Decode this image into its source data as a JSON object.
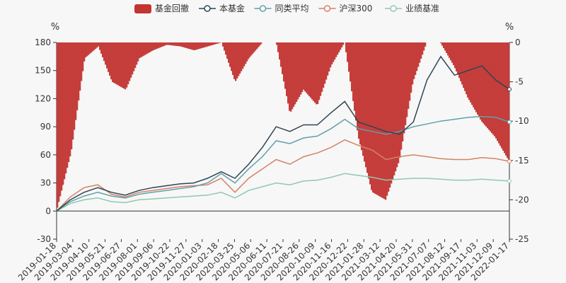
{
  "chart_data": {
    "type": "line",
    "legend": {
      "position": "top",
      "items": [
        {
          "label": "基金回撤",
          "color": "#c23531",
          "marker": "rect"
        },
        {
          "label": "本基金",
          "color": "#2f4554",
          "marker": "line-circle"
        },
        {
          "label": "同类平均",
          "color": "#61a0a8",
          "marker": "line-circle"
        },
        {
          "label": "沪深300",
          "color": "#d48265",
          "marker": "line-circle"
        },
        {
          "label": "业绩基准",
          "color": "#91c7ae",
          "marker": "line-circle"
        }
      ]
    },
    "left_axis": {
      "unit_label": "%",
      "min": -30,
      "max": 180,
      "ticks": [
        180,
        150,
        120,
        90,
        60,
        30,
        0,
        -30
      ]
    },
    "right_axis": {
      "unit_label": "%",
      "min": -25,
      "max": 0,
      "ticks": [
        0,
        -5,
        -10,
        -15,
        -20,
        -25
      ]
    },
    "x_tick_labels": [
      "2019-01-18",
      "2019-03-04",
      "2019-04-10",
      "2019-05-21",
      "2019-06-27",
      "2019-08-01",
      "2019-09-06",
      "2019-10-22",
      "2019-11-27",
      "2020-01-03",
      "2020-02-18",
      "2020-03-25",
      "2020-05-06",
      "2020-06-11",
      "2020-07-21",
      "2020-08-26",
      "2020-10-09",
      "2020-11-16",
      "2020-12-22",
      "2021-01-28",
      "2021-03-12",
      "2021-04-20",
      "2021-05-31",
      "2021-07-07",
      "2021-08-12",
      "2021-09-17",
      "2021-11-03",
      "2021-12-09",
      "2022-01-17"
    ],
    "series": [
      {
        "name": "本基金",
        "color": "#2f4554",
        "axis": "left",
        "values": [
          0,
          12,
          20,
          25,
          20,
          17,
          22,
          25,
          27,
          29,
          30,
          35,
          42,
          35,
          50,
          68,
          90,
          85,
          92,
          92,
          105,
          117,
          95,
          90,
          85,
          82,
          95,
          140,
          165,
          145,
          150,
          155,
          140,
          130
        ]
      },
      {
        "name": "同类平均",
        "color": "#61a0a8",
        "axis": "left",
        "values": [
          0,
          10,
          16,
          20,
          16,
          14,
          18,
          20,
          22,
          24,
          26,
          30,
          40,
          30,
          45,
          58,
          75,
          72,
          78,
          80,
          88,
          98,
          88,
          85,
          82,
          85,
          90,
          93,
          96,
          98,
          100,
          101,
          100,
          95
        ]
      },
      {
        "name": "沪深300",
        "color": "#d48265",
        "axis": "left",
        "values": [
          0,
          15,
          25,
          28,
          18,
          15,
          20,
          22,
          24,
          26,
          27,
          28,
          35,
          20,
          35,
          45,
          55,
          50,
          58,
          62,
          68,
          76,
          70,
          65,
          55,
          58,
          60,
          58,
          56,
          55,
          55,
          57,
          56,
          53
        ]
      },
      {
        "name": "业绩基准",
        "color": "#91c7ae",
        "axis": "left",
        "values": [
          0,
          8,
          12,
          14,
          10,
          9,
          12,
          13,
          14,
          15,
          16,
          17,
          20,
          14,
          22,
          26,
          30,
          28,
          32,
          33,
          36,
          40,
          38,
          36,
          33,
          34,
          35,
          35,
          34,
          33,
          33,
          34,
          33,
          32
        ]
      },
      {
        "name": "基金回撤",
        "color": "#c23531",
        "axis": "right",
        "type": "bar",
        "values": [
          -21,
          -14,
          -2,
          -0.5,
          -5,
          -6,
          -2,
          -1,
          -0.3,
          -0.5,
          -1,
          -0.5,
          0,
          -5,
          -2,
          0,
          0,
          -9,
          -6,
          -8,
          -3,
          0,
          -12,
          -19,
          -20,
          -15,
          -5,
          0,
          0,
          -3,
          -7,
          -10,
          -12,
          -15
        ]
      }
    ]
  }
}
